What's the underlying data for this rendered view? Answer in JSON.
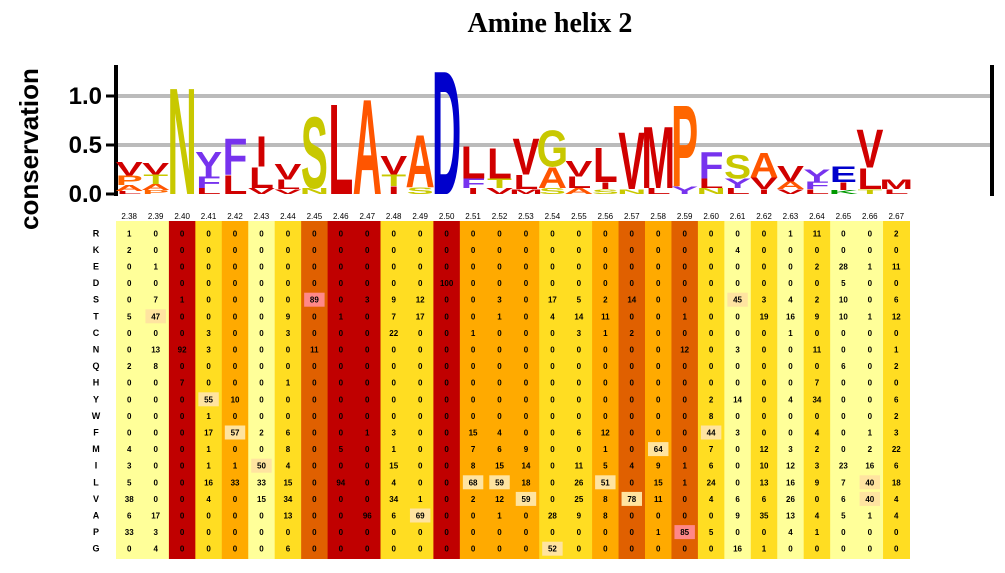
{
  "chart_data": {
    "type": "heatmap",
    "title": "Amine helix 2",
    "ylabel": "conservation",
    "logo_yticks": [
      "0.0",
      "0.5",
      "1.0"
    ],
    "logo_ylim": [
      0,
      1.3
    ],
    "colors": {
      "ladder": [
        "#ffff99",
        "#ffdd22",
        "#ffaa00",
        "#e06000",
        "#c00000"
      ],
      "pale": "#fdf3b0",
      "residue": {
        "hydrophobic": "#d00000",
        "polar_sg": "#c8c800",
        "polar_stn": "#c8c800",
        "A": "#ff5500",
        "D": "#0000cc",
        "E": "#0000cc",
        "R": "#009900",
        "K": "#009900",
        "H": "#009900",
        "F": "#7733ee",
        "Y": "#7733ee",
        "W": "#7733ee",
        "P": "#ff6600",
        "C": "#ffaa00",
        "Q": "#ff0066"
      }
    },
    "logo": [
      {
        "letters": [
          [
            "V",
            0.14
          ],
          [
            "P",
            0.1
          ],
          [
            "A",
            0.06
          ],
          [
            "L",
            0.03
          ]
        ]
      },
      {
        "letters": [
          [
            "V",
            0.12
          ],
          [
            "T",
            0.1
          ],
          [
            "A",
            0.06
          ],
          [
            "P",
            0.04
          ]
        ]
      },
      {
        "letters": [
          [
            "N",
            1.12
          ]
        ]
      },
      {
        "letters": [
          [
            "Y",
            0.26
          ],
          [
            "F",
            0.12
          ],
          [
            "L",
            0.06
          ]
        ]
      },
      {
        "letters": [
          [
            "F",
            0.38
          ],
          [
            "L",
            0.2
          ]
        ]
      },
      {
        "letters": [
          [
            "I",
            0.32
          ],
          [
            "L",
            0.22
          ],
          [
            "V",
            0.06
          ]
        ]
      },
      {
        "letters": [
          [
            "V",
            0.16
          ],
          [
            "L",
            0.1
          ],
          [
            "V",
            0.05
          ]
        ]
      },
      {
        "letters": [
          [
            "S",
            0.75
          ],
          [
            "N",
            0.06
          ]
        ]
      },
      {
        "letters": [
          [
            "L",
            0.95
          ]
        ]
      },
      {
        "letters": [
          [
            "A",
            1.0
          ]
        ]
      },
      {
        "letters": [
          [
            "V",
            0.2
          ],
          [
            "T",
            0.12
          ],
          [
            "I",
            0.08
          ]
        ]
      },
      {
        "letters": [
          [
            "A",
            0.55
          ],
          [
            "S",
            0.07
          ]
        ]
      },
      {
        "letters": [
          [
            "D",
            1.3
          ]
        ]
      },
      {
        "letters": [
          [
            "L",
            0.34
          ],
          [
            "F",
            0.1
          ],
          [
            "I",
            0.06
          ]
        ]
      },
      {
        "letters": [
          [
            "L",
            0.32
          ],
          [
            "T",
            0.1
          ],
          [
            "V",
            0.06
          ]
        ]
      },
      {
        "letters": [
          [
            "V",
            0.38
          ],
          [
            "L",
            0.15
          ],
          [
            "M",
            0.05
          ]
        ]
      },
      {
        "letters": [
          [
            "G",
            0.38
          ],
          [
            "A",
            0.22
          ],
          [
            "S",
            0.06
          ]
        ]
      },
      {
        "letters": [
          [
            "V",
            0.16
          ],
          [
            "L",
            0.12
          ],
          [
            "A",
            0.06
          ]
        ]
      },
      {
        "letters": [
          [
            "L",
            0.36
          ],
          [
            "I",
            0.07
          ],
          [
            "S",
            0.05
          ]
        ]
      },
      {
        "letters": [
          [
            "V",
            0.6
          ],
          [
            "N",
            0.05
          ]
        ]
      },
      {
        "letters": [
          [
            "M",
            0.65
          ],
          [
            "L",
            0.06
          ]
        ]
      },
      {
        "letters": [
          [
            "P",
            0.85
          ],
          [
            "Y",
            0.08
          ]
        ]
      },
      {
        "letters": [
          [
            "F",
            0.28
          ],
          [
            "L",
            0.1
          ],
          [
            "N",
            0.06
          ]
        ]
      },
      {
        "letters": [
          [
            "S",
            0.25
          ],
          [
            "Y",
            0.1
          ],
          [
            "L",
            0.06
          ]
        ]
      },
      {
        "letters": [
          [
            "A",
            0.26
          ],
          [
            "V",
            0.12
          ],
          [
            "I",
            0.05
          ]
        ]
      },
      {
        "letters": [
          [
            "V",
            0.16
          ],
          [
            "A",
            0.08
          ],
          [
            "V",
            0.05
          ]
        ]
      },
      {
        "letters": [
          [
            "Y",
            0.13
          ],
          [
            "F",
            0.08
          ],
          [
            "L",
            0.05
          ]
        ]
      },
      {
        "letters": [
          [
            "E",
            0.16
          ],
          [
            "I",
            0.08
          ],
          [
            "K",
            0.04
          ]
        ]
      },
      {
        "letters": [
          [
            "V",
            0.4
          ],
          [
            "L",
            0.22
          ],
          [
            "T",
            0.05
          ]
        ]
      },
      {
        "letters": [
          [
            "M",
            0.1
          ],
          [
            "L",
            0.05
          ]
        ]
      }
    ],
    "positions": [
      "2.38",
      "2.39",
      "2.40",
      "2.41",
      "2.42",
      "2.43",
      "2.44",
      "2.45",
      "2.46",
      "2.47",
      "2.48",
      "2.49",
      "2.50",
      "2.51",
      "2.52",
      "2.53",
      "2.54",
      "2.55",
      "2.56",
      "2.57",
      "2.58",
      "2.59",
      "2.60",
      "2.61",
      "2.62",
      "2.63",
      "2.64",
      "2.65",
      "2.66",
      "2.67"
    ],
    "amino_acids": [
      "R",
      "K",
      "E",
      "D",
      "S",
      "T",
      "C",
      "N",
      "Q",
      "H",
      "Y",
      "W",
      "F",
      "M",
      "I",
      "L",
      "V",
      "A",
      "P",
      "G"
    ],
    "column_levels": [
      0,
      0,
      4,
      1,
      2,
      0,
      1,
      3,
      4,
      4,
      1,
      1,
      4,
      2,
      2,
      2,
      1,
      1,
      2,
      3,
      2,
      3,
      1,
      0,
      1,
      0,
      1,
      0,
      0,
      1
    ],
    "values": [
      [
        1,
        0,
        0,
        0,
        0,
        0,
        0,
        0,
        0,
        0,
        0,
        0,
        0,
        0,
        0,
        0,
        0,
        0,
        0,
        0,
        0,
        0,
        0,
        0,
        0,
        1,
        11,
        0,
        0,
        2
      ],
      [
        2,
        0,
        0,
        0,
        0,
        0,
        0,
        0,
        0,
        0,
        0,
        0,
        0,
        0,
        0,
        0,
        0,
        0,
        0,
        0,
        0,
        0,
        0,
        4,
        0,
        0,
        0,
        0,
        0,
        0
      ],
      [
        0,
        1,
        0,
        0,
        0,
        0,
        0,
        0,
        0,
        0,
        0,
        0,
        0,
        0,
        0,
        0,
        0,
        0,
        0,
        0,
        0,
        0,
        0,
        0,
        0,
        0,
        2,
        28,
        1,
        11
      ],
      [
        0,
        0,
        0,
        0,
        0,
        0,
        0,
        0,
        0,
        0,
        0,
        0,
        100,
        0,
        0,
        0,
        0,
        0,
        0,
        0,
        0,
        0,
        0,
        0,
        0,
        0,
        0,
        5,
        0,
        0
      ],
      [
        0,
        7,
        1,
        0,
        0,
        0,
        0,
        89,
        0,
        3,
        9,
        12,
        0,
        0,
        3,
        0,
        17,
        5,
        2,
        14,
        0,
        0,
        0,
        45,
        3,
        4,
        2,
        10,
        0,
        6
      ],
      [
        5,
        47,
        0,
        0,
        0,
        0,
        9,
        0,
        1,
        0,
        7,
        17,
        0,
        0,
        1,
        0,
        4,
        14,
        11,
        0,
        0,
        1,
        0,
        0,
        19,
        16,
        9,
        10,
        1,
        12
      ],
      [
        0,
        0,
        0,
        3,
        0,
        0,
        3,
        0,
        0,
        0,
        22,
        0,
        0,
        1,
        0,
        0,
        0,
        3,
        1,
        2,
        0,
        0,
        0,
        0,
        0,
        1,
        0,
        0,
        0,
        0
      ],
      [
        0,
        13,
        92,
        3,
        0,
        0,
        0,
        11,
        0,
        0,
        0,
        0,
        0,
        0,
        0,
        0,
        0,
        0,
        0,
        0,
        0,
        12,
        0,
        3,
        0,
        0,
        11,
        0,
        0,
        1
      ],
      [
        2,
        8,
        0,
        0,
        0,
        0,
        0,
        0,
        0,
        0,
        0,
        0,
        0,
        0,
        0,
        0,
        0,
        0,
        0,
        0,
        0,
        0,
        0,
        0,
        0,
        0,
        0,
        6,
        0,
        2
      ],
      [
        0,
        0,
        7,
        0,
        0,
        0,
        1,
        0,
        0,
        0,
        0,
        0,
        0,
        0,
        0,
        0,
        0,
        0,
        0,
        0,
        0,
        0,
        0,
        0,
        0,
        0,
        7,
        0,
        0,
        0
      ],
      [
        0,
        0,
        0,
        55,
        10,
        0,
        0,
        0,
        0,
        0,
        0,
        0,
        0,
        0,
        0,
        0,
        0,
        0,
        0,
        0,
        0,
        0,
        2,
        14,
        0,
        4,
        34,
        0,
        0,
        6
      ],
      [
        0,
        0,
        0,
        1,
        0,
        0,
        0,
        0,
        0,
        0,
        0,
        0,
        0,
        0,
        0,
        0,
        0,
        0,
        0,
        0,
        0,
        0,
        8,
        0,
        0,
        0,
        0,
        0,
        0,
        2
      ],
      [
        0,
        0,
        0,
        17,
        57,
        2,
        6,
        0,
        0,
        1,
        3,
        0,
        0,
        15,
        4,
        0,
        0,
        6,
        12,
        0,
        0,
        0,
        44,
        3,
        0,
        0,
        4,
        0,
        1,
        3
      ],
      [
        4,
        0,
        0,
        1,
        0,
        0,
        8,
        0,
        5,
        0,
        1,
        0,
        0,
        7,
        6,
        9,
        0,
        0,
        1,
        0,
        64,
        0,
        7,
        0,
        12,
        3,
        2,
        0,
        2,
        22
      ],
      [
        3,
        0,
        0,
        1,
        1,
        50,
        4,
        0,
        0,
        0,
        15,
        0,
        0,
        8,
        15,
        14,
        0,
        11,
        5,
        4,
        9,
        1,
        6,
        0,
        10,
        12,
        3,
        23,
        16,
        6
      ],
      [
        5,
        0,
        0,
        16,
        33,
        33,
        15,
        0,
        94,
        0,
        4,
        0,
        0,
        68,
        59,
        18,
        0,
        26,
        51,
        0,
        15,
        1,
        24,
        0,
        13,
        16,
        9,
        7,
        40,
        18
      ],
      [
        38,
        0,
        0,
        4,
        0,
        15,
        34,
        0,
        0,
        0,
        34,
        1,
        0,
        2,
        12,
        59,
        0,
        25,
        8,
        78,
        11,
        0,
        4,
        6,
        6,
        26,
        0,
        6,
        40,
        4
      ],
      [
        6,
        17,
        0,
        0,
        0,
        0,
        13,
        0,
        0,
        96,
        6,
        69,
        0,
        0,
        1,
        0,
        28,
        9,
        8,
        0,
        0,
        0,
        0,
        9,
        35,
        13,
        4,
        5,
        1,
        4
      ],
      [
        33,
        3,
        0,
        0,
        0,
        0,
        0,
        0,
        0,
        0,
        0,
        0,
        0,
        0,
        0,
        0,
        0,
        0,
        0,
        0,
        1,
        85,
        5,
        0,
        0,
        4,
        1,
        0,
        0,
        0
      ],
      [
        0,
        4,
        0,
        0,
        0,
        0,
        6,
        0,
        0,
        0,
        0,
        0,
        0,
        0,
        0,
        0,
        52,
        0,
        0,
        0,
        0,
        0,
        0,
        16,
        1,
        0,
        0,
        0,
        0,
        0
      ]
    ]
  }
}
